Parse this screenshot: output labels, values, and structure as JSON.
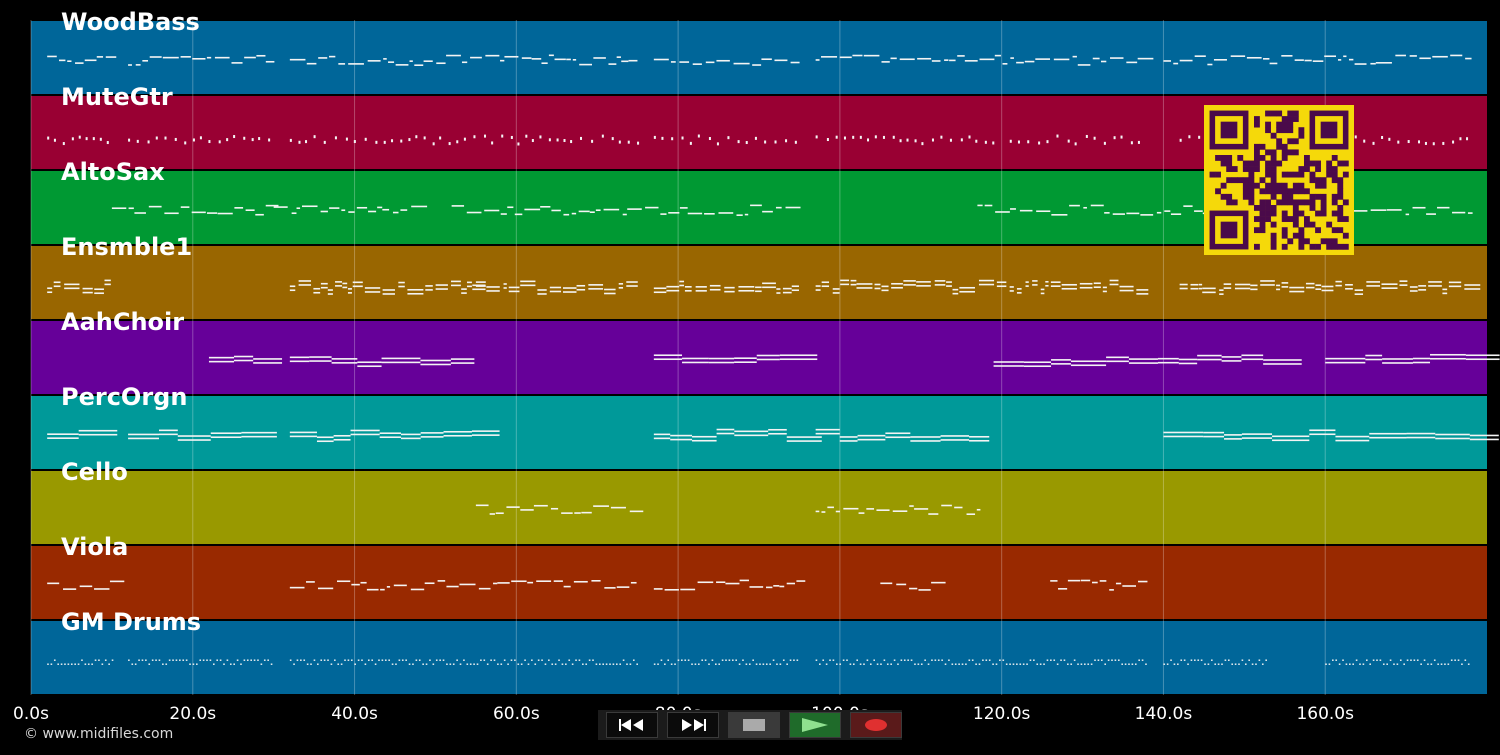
{
  "tracks": [
    {
      "name": "WoodBass",
      "color": "#006699",
      "notes": "bass"
    },
    {
      "name": "MuteGtr",
      "color": "#990033",
      "notes": "guitar"
    },
    {
      "name": "AltoSax",
      "color": "#009933",
      "notes": "sax"
    },
    {
      "name": "Ensmble1",
      "color": "#996600",
      "notes": "ensemble"
    },
    {
      "name": "AahChoir",
      "color": "#660099",
      "notes": "choir"
    },
    {
      "name": "PercOrgn",
      "color": "#009999",
      "notes": "organ"
    },
    {
      "name": "Cello",
      "color": "#999900",
      "notes": "cello"
    },
    {
      "name": "Viola",
      "color": "#992900",
      "notes": "viola"
    },
    {
      "name": "GM Drums",
      "color": "#006699",
      "notes": "drums"
    }
  ],
  "timeline": {
    "ticks": [
      "0.0s",
      "20.0s",
      "40.0s",
      "60.0s",
      "80.0s",
      "100.0s",
      "120.0s",
      "140.0s",
      "160.0s"
    ],
    "tick_seconds": [
      0,
      20,
      40,
      60,
      80,
      100,
      120,
      140,
      160
    ],
    "max_seconds": 180
  },
  "copyright": "© www.midifiles.com",
  "transport": {
    "rewind_icon": "rewind-icon",
    "forward_icon": "fast-forward-icon",
    "stop_icon": "stop-icon",
    "play_icon": "play-icon",
    "record_icon": "record-icon"
  },
  "qr_color": "#f5d90a",
  "qr_dark": "#4a0a4a"
}
